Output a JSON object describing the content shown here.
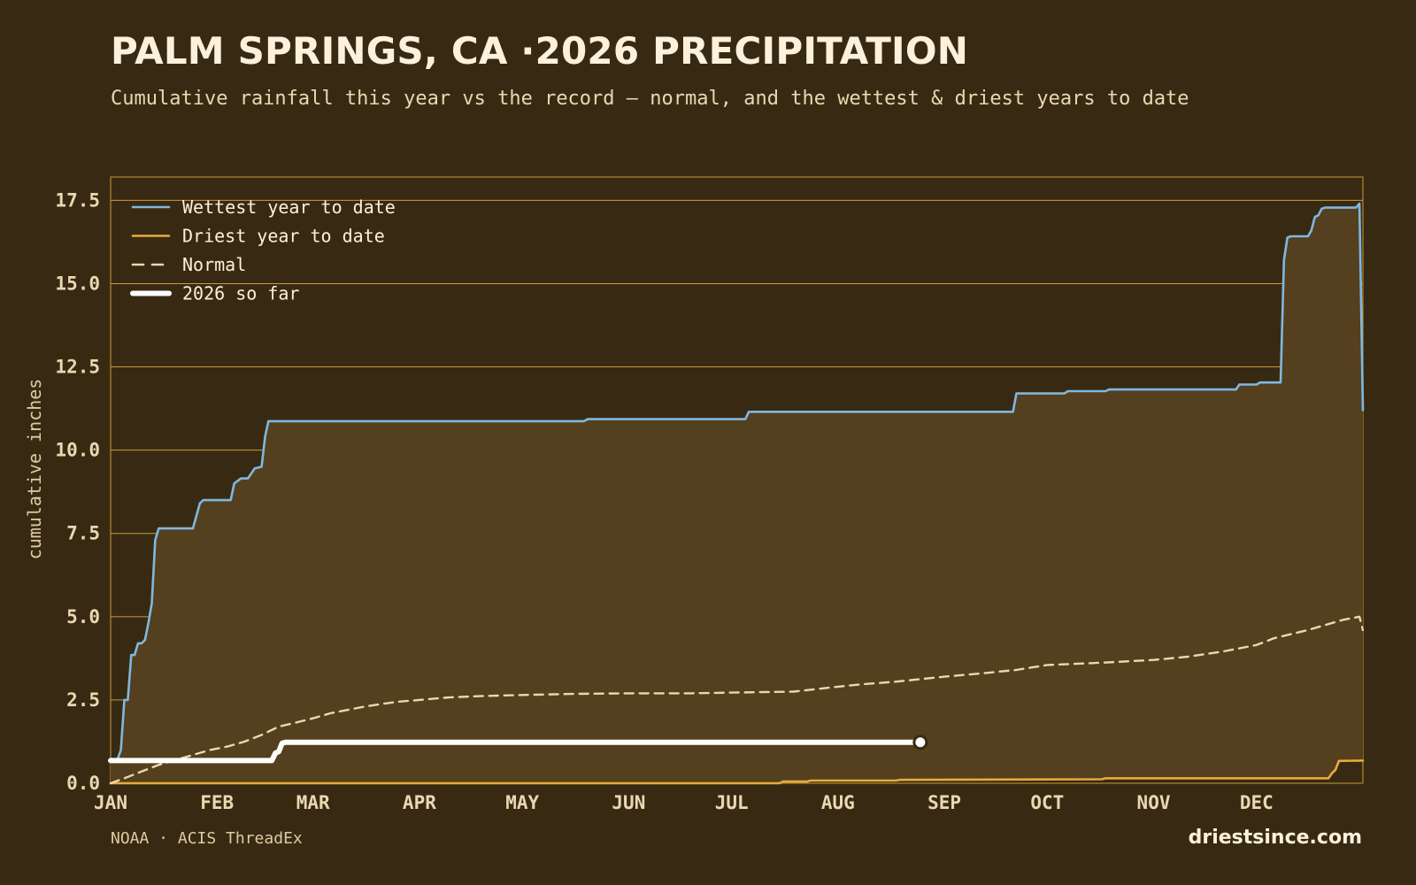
{
  "header": {
    "title": "PALM SPRINGS, CA ·2026 PRECIPITATION",
    "subtitle": "Cumulative rainfall this year vs the record — normal, and the wettest & driest years to date"
  },
  "footer": {
    "source": "NOAA · ACIS ThreadEx",
    "brand": "driestsince.com"
  },
  "colors": {
    "background": "#382a12",
    "band_fill": "#543f1e",
    "grid": "#c99a3c",
    "wettest": "#7fb8e0",
    "driest": "#e6ad3e",
    "normal": "#e9d8b2",
    "current": "#ffffff"
  },
  "chart_data": {
    "type": "line",
    "title": "PALM SPRINGS, CA ·2026 PRECIPITATION",
    "xlabel": "",
    "ylabel": "cumulative inches",
    "x_unit": "day of year",
    "xlim": [
      1,
      366
    ],
    "ylim": [
      0,
      18.2
    ],
    "y_ticks": [
      "0.0",
      "2.5",
      "5.0",
      "7.5",
      "10.0",
      "12.5",
      "15.0",
      "17.5"
    ],
    "y_tick_values": [
      0,
      2.5,
      5,
      7.5,
      10,
      12.5,
      15,
      17.5
    ],
    "x_ticks": [
      "JAN",
      "FEB",
      "MAR",
      "APR",
      "MAY",
      "JUN",
      "JUL",
      "AUG",
      "SEP",
      "OCT",
      "NOV",
      "DEC"
    ],
    "x_tick_days": [
      1,
      32,
      60,
      91,
      121,
      152,
      182,
      213,
      244,
      274,
      305,
      335
    ],
    "grid": true,
    "legend_position": "top-left",
    "band_between": [
      "Driest year to date",
      "Wettest year to date"
    ],
    "series": [
      {
        "name": "Wettest year to date",
        "style": "solid",
        "x": [
          1,
          3,
          4,
          5,
          6,
          7,
          8,
          9,
          10,
          11,
          12,
          13,
          14,
          15,
          16,
          17,
          18,
          19,
          25,
          27,
          28,
          36,
          37,
          39,
          40,
          41,
          43,
          45,
          46,
          47,
          48,
          49,
          50,
          51,
          139,
          140,
          186,
          187,
          264,
          265,
          279,
          280,
          291,
          292,
          329,
          330,
          335,
          336,
          342,
          343,
          344,
          345,
          346,
          350,
          351,
          352,
          353,
          354,
          355,
          364,
          365,
          366
        ],
        "y": [
          0.7,
          0.72,
          1.0,
          2.5,
          2.5,
          3.85,
          3.85,
          4.2,
          4.2,
          4.3,
          4.8,
          5.4,
          7.3,
          7.65,
          7.65,
          7.65,
          7.65,
          7.65,
          7.65,
          8.4,
          8.5,
          8.5,
          9.0,
          9.15,
          9.15,
          9.15,
          9.45,
          9.5,
          10.4,
          10.87,
          10.87,
          10.87,
          10.87,
          10.87,
          10.87,
          10.93,
          10.93,
          11.15,
          11.15,
          11.7,
          11.7,
          11.77,
          11.77,
          11.82,
          11.82,
          11.97,
          11.97,
          12.03,
          12.03,
          15.7,
          16.38,
          16.42,
          16.42,
          16.42,
          16.6,
          17.0,
          17.05,
          17.25,
          17.28,
          17.28,
          17.4,
          11.2
        ]
      },
      {
        "name": "Driest year to date",
        "style": "solid",
        "x": [
          1,
          196,
          197,
          204,
          205,
          230,
          231,
          290,
          291,
          347,
          348,
          356,
          357,
          358,
          359,
          366
        ],
        "y": [
          0.0,
          0.0,
          0.05,
          0.05,
          0.08,
          0.08,
          0.1,
          0.12,
          0.15,
          0.15,
          0.15,
          0.15,
          0.3,
          0.4,
          0.67,
          0.68
        ]
      },
      {
        "name": "Normal",
        "style": "dashed",
        "x": [
          1,
          5,
          10,
          15,
          20,
          25,
          30,
          35,
          40,
          45,
          50,
          55,
          60,
          65,
          70,
          75,
          80,
          85,
          91,
          100,
          110,
          121,
          135,
          152,
          170,
          182,
          200,
          213,
          220,
          230,
          244,
          255,
          265,
          274,
          290,
          305,
          315,
          325,
          335,
          340,
          350,
          355,
          360,
          365,
          366
        ],
        "y": [
          0.0,
          0.15,
          0.35,
          0.55,
          0.7,
          0.85,
          1.0,
          1.1,
          1.25,
          1.45,
          1.7,
          1.82,
          1.95,
          2.1,
          2.2,
          2.3,
          2.38,
          2.45,
          2.5,
          2.58,
          2.62,
          2.65,
          2.68,
          2.7,
          2.7,
          2.72,
          2.75,
          2.9,
          2.97,
          3.05,
          3.2,
          3.3,
          3.4,
          3.55,
          3.62,
          3.7,
          3.8,
          3.95,
          4.15,
          4.35,
          4.6,
          4.75,
          4.9,
          5.0,
          4.6
        ]
      },
      {
        "name": "2026 so far",
        "style": "solid-thick",
        "x": [
          1,
          48,
          49,
          50,
          51,
          52,
          237
        ],
        "y": [
          0.68,
          0.68,
          0.9,
          0.95,
          1.2,
          1.23,
          1.23
        ],
        "end_marker": true
      }
    ]
  }
}
